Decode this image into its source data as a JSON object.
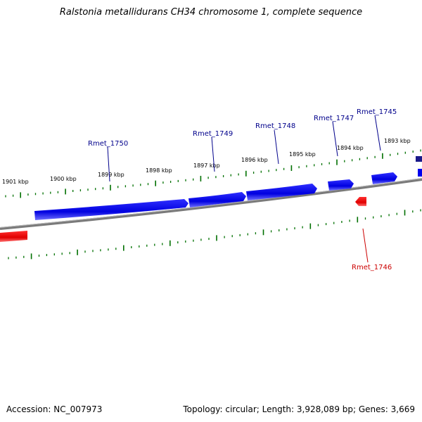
{
  "title": "Ralstonia metallidurans CH34 chromosome 1, complete sequence",
  "footer": {
    "accession": "Accession: NC_007973",
    "summary": "Topology: circular; Length: 3,928,089 bp; Genes: 3,669"
  },
  "colors": {
    "forward_gene": "#0000ee",
    "reverse_gene": "#ee0000",
    "forward_label": "#00008b",
    "reverse_label": "#cc0000",
    "tick": "#007000",
    "backbone": "#808080"
  },
  "kbp_labels": [
    "1901 kbp",
    "1900 kbp",
    "1899 kbp",
    "1898 kbp",
    "1897 kbp",
    "1896 kbp",
    "1895 kbp",
    "1894 kbp",
    "1893 kbp"
  ],
  "forward_genes": [
    "Rmet_1750",
    "Rmet_1749",
    "Rmet_1748",
    "Rmet_1747",
    "Rmet_1745"
  ],
  "reverse_genes": [
    "Rmet_1746"
  ]
}
